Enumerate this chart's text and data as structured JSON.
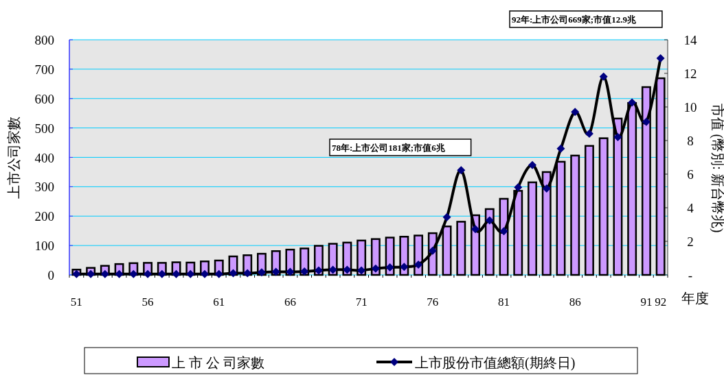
{
  "chart_data": {
    "type": "bar",
    "xlabel": "年度",
    "ylabel": "上市公司家數",
    "y2label": "市值 (幣別: 新台幣兆)",
    "categories": [
      "51",
      null,
      null,
      null,
      null,
      "56",
      null,
      null,
      null,
      null,
      "61",
      null,
      null,
      null,
      null,
      "66",
      null,
      null,
      null,
      null,
      "71",
      null,
      null,
      null,
      null,
      "76",
      null,
      null,
      null,
      null,
      "81",
      null,
      null,
      null,
      null,
      "86",
      null,
      null,
      null,
      null,
      "91",
      "92"
    ],
    "series": [
      {
        "name": "上 市 公 司家數",
        "color": "#cc99ff",
        "values": [
          18,
          24,
          31,
          37,
          40,
          41,
          41,
          43,
          42,
          46,
          49,
          63,
          67,
          72,
          81,
          86,
          90,
          99,
          106,
          110,
          117,
          122,
          127,
          130,
          134,
          142,
          165,
          181,
          203,
          224,
          259,
          286,
          315,
          350,
          385,
          406,
          439,
          465,
          532,
          585,
          639,
          669
        ]
      },
      {
        "name": "上市股份市值總額(期終日)",
        "type": "line",
        "axis": "y2",
        "color": "#000000",
        "marker": "diamond",
        "values": [
          0.05,
          0.05,
          0.05,
          0.05,
          0.05,
          0.05,
          0.05,
          0.05,
          0.05,
          0.05,
          0.05,
          0.1,
          0.1,
          0.15,
          0.18,
          0.18,
          0.2,
          0.27,
          0.31,
          0.31,
          0.27,
          0.38,
          0.45,
          0.48,
          0.61,
          1.44,
          3.44,
          6.23,
          2.72,
          3.24,
          2.6,
          5.21,
          6.54,
          5.14,
          7.52,
          9.7,
          8.41,
          11.81,
          8.2,
          10.27,
          9.11,
          12.9
        ]
      }
    ],
    "ylim": [
      0,
      800
    ],
    "yticks": [
      0,
      100,
      200,
      300,
      400,
      500,
      600,
      700,
      800
    ],
    "y2lim": [
      0,
      14
    ],
    "y2ticks": [
      {
        "value": 0,
        "label": "-"
      },
      2,
      4,
      6,
      8,
      10,
      12,
      14
    ],
    "grid": "y",
    "legend": "bottom",
    "annotations": [
      "78年:上市公司181家;市值6兆",
      "92年:上市公司669家;市值12.9兆"
    ]
  }
}
